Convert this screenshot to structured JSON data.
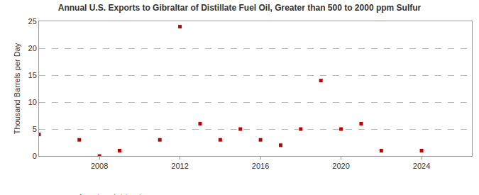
{
  "chart_data": {
    "type": "scatter",
    "title": "Annual U.S. Exports to Gibraltar of Distillate Fuel Oil, Greater than 500 to 2000 ppm Sulfur",
    "y_label": "Thousand Barrels per Day",
    "source": "Source: U.S. Energy Information Administration",
    "x": [
      2005,
      2007,
      2008,
      2009,
      2011,
      2012,
      2013,
      2014,
      2015,
      2016,
      2017,
      2018,
      2019,
      2020,
      2021,
      2022,
      2024
    ],
    "values": [
      4,
      3,
      0,
      1,
      3,
      24,
      6,
      3,
      5,
      3,
      2,
      5,
      14,
      5,
      6,
      1,
      1
    ],
    "color": "#c00000",
    "marker": "square",
    "xlim": [
      2005,
      2026.5
    ],
    "xticks": [
      2008,
      2012,
      2016,
      2020,
      2024
    ],
    "ylim": [
      0,
      25
    ],
    "yticks": [
      0,
      5,
      10,
      15,
      20,
      25
    ],
    "grid": true
  }
}
